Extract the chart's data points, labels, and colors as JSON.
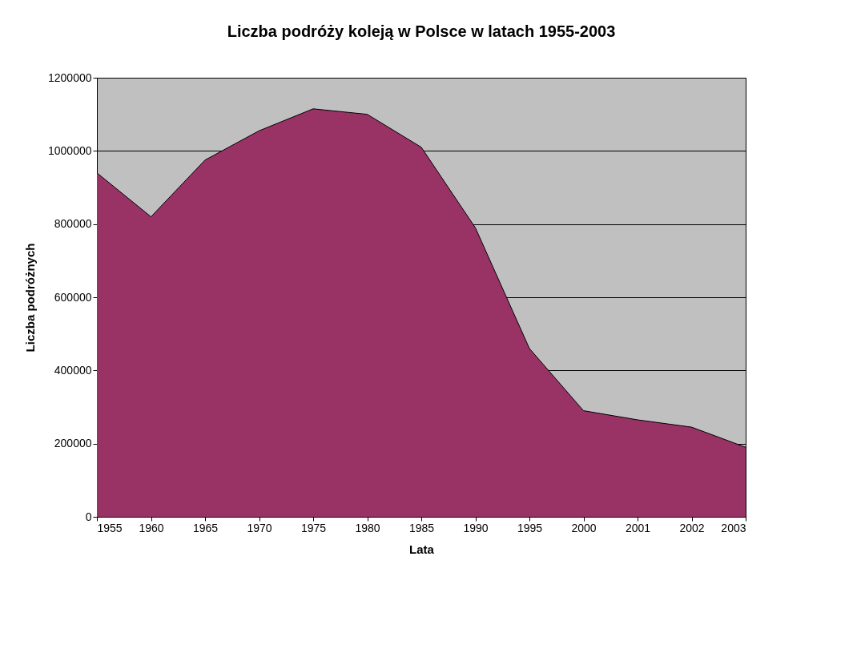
{
  "chart_data": {
    "type": "area",
    "title": "Liczba podróży koleją w Polsce w latach 1955-2003",
    "xlabel": "Lata",
    "ylabel": "Liczba podróżnych",
    "categories": [
      "1955",
      "1960",
      "1965",
      "1970",
      "1975",
      "1980",
      "1985",
      "1990",
      "1995",
      "2000",
      "2001",
      "2002",
      "2003"
    ],
    "series": [
      {
        "color": "#993366",
        "values": [
          940000,
          820000,
          975000,
          1055000,
          1115000,
          1100000,
          1010000,
          790000,
          460000,
          290000,
          265000,
          245000,
          190000
        ]
      }
    ],
    "ylim": [
      0,
      1200000
    ],
    "yticks": [
      0,
      200000,
      400000,
      600000,
      800000,
      1000000,
      1200000
    ],
    "grid": "y"
  }
}
